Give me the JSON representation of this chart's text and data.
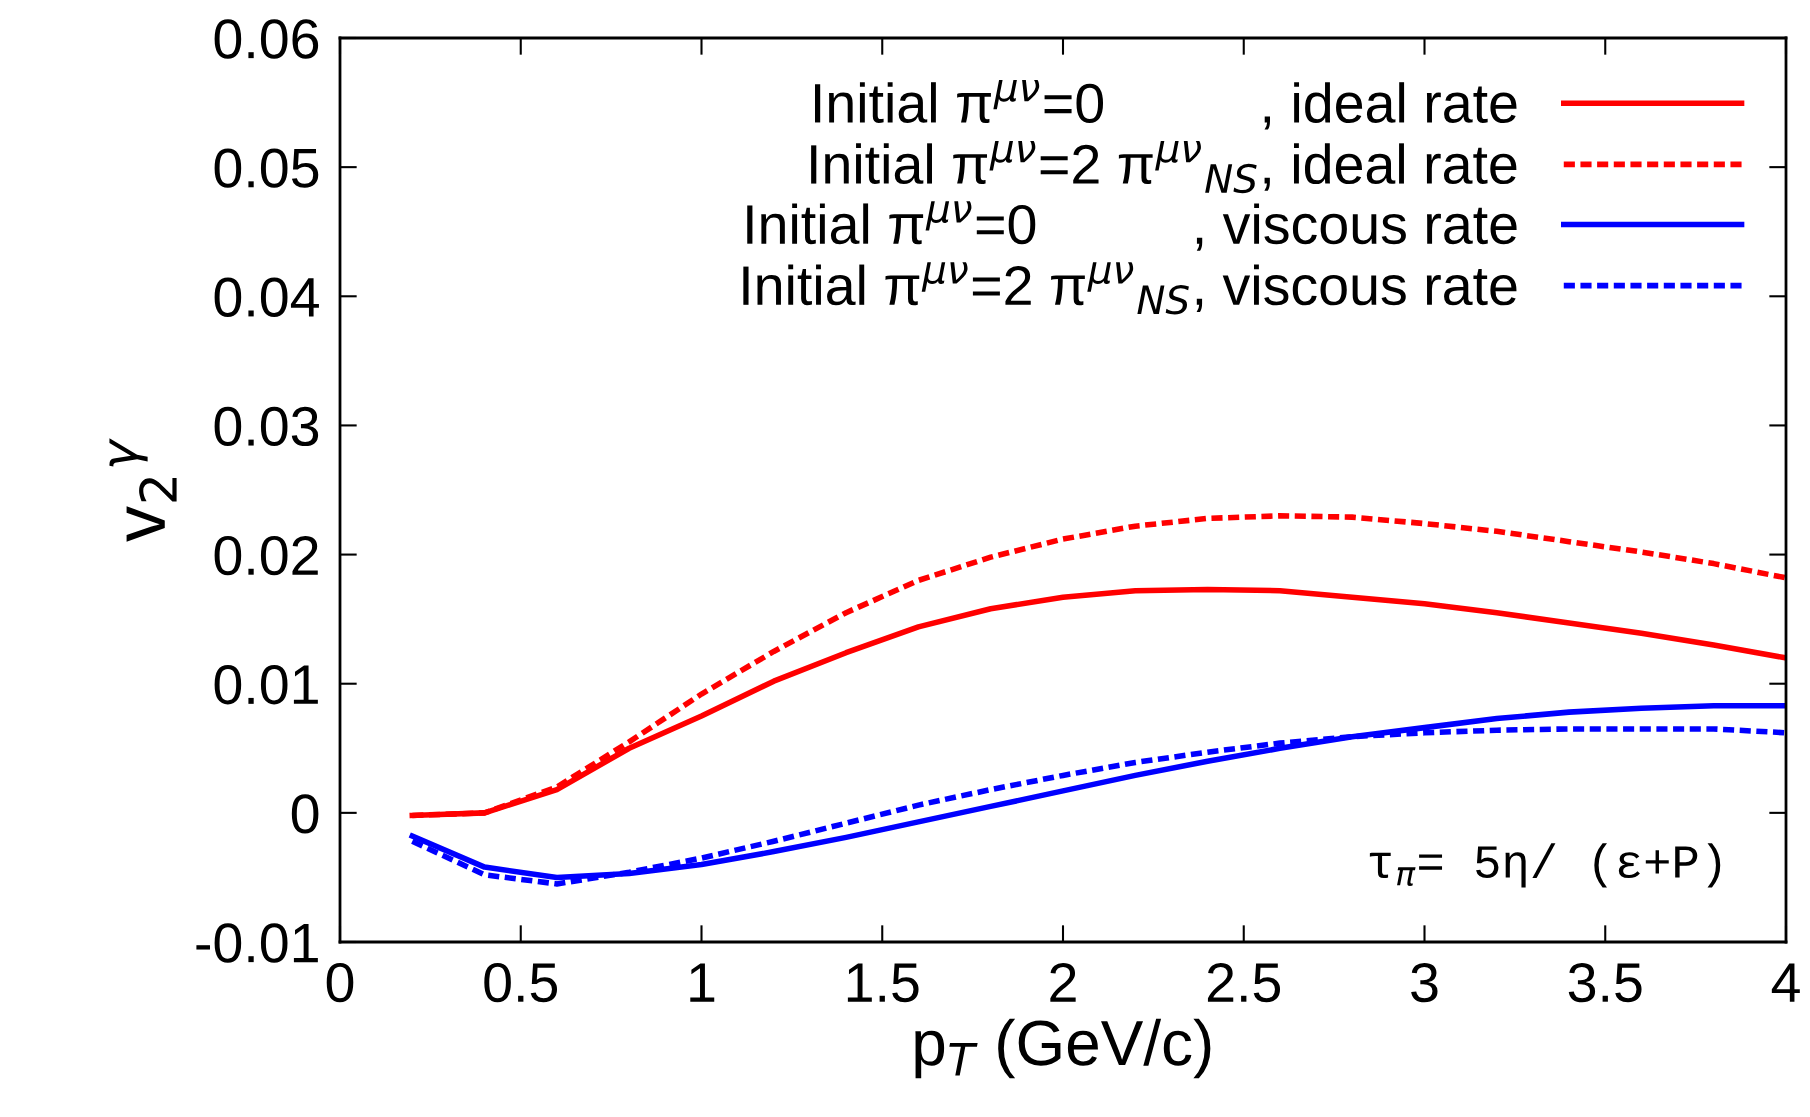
{
  "chart_data": {
    "type": "line",
    "xlabel": "p$_{T}$ (GeV/c)",
    "ylabel": "v$_{2}$$^{γ}$",
    "x": [
      0.2,
      0.4,
      0.6,
      0.8,
      1.0,
      1.2,
      1.4,
      1.6,
      1.8,
      2.0,
      2.2,
      2.4,
      2.6,
      2.8,
      3.0,
      3.2,
      3.4,
      3.6,
      3.8,
      4.0
    ],
    "series": [
      {
        "name": "Initial π$^{μν}$=0          , ideal rate",
        "color": "#ff0000",
        "line_style": "solid",
        "values": [
          -0.0002,
          0.0,
          0.0018,
          0.005,
          0.0075,
          0.0102,
          0.0124,
          0.0144,
          0.0158,
          0.0167,
          0.0172,
          0.0173,
          0.0172,
          0.0167,
          0.0162,
          0.0155,
          0.0147,
          0.0139,
          0.013,
          0.012
        ]
      },
      {
        "name": "Initial π$^{μν}$=2 π$^{μν}$$_{NS}$, ideal rate",
        "color": "#ff0000",
        "line_style": "dashed",
        "values": [
          -0.0002,
          0.0,
          0.002,
          0.0055,
          0.0092,
          0.0125,
          0.0155,
          0.018,
          0.0198,
          0.0212,
          0.0222,
          0.0228,
          0.023,
          0.0229,
          0.0224,
          0.0218,
          0.021,
          0.0202,
          0.0193,
          0.0182
        ]
      },
      {
        "name": "Initial π$^{μν}$=0          , viscous rate",
        "color": "#0000ff",
        "line_style": "solid",
        "values": [
          -0.0018,
          -0.0042,
          -0.005,
          -0.0047,
          -0.004,
          -0.003,
          -0.0019,
          -0.0007,
          0.0005,
          0.0017,
          0.0029,
          0.004,
          0.005,
          0.0059,
          0.0066,
          0.0073,
          0.0078,
          0.0081,
          0.0083,
          0.0083
        ]
      },
      {
        "name": "Initial π$^{μν}$=2 π$^{μν}$$_{NS}$, viscous rate",
        "color": "#0000ff",
        "line_style": "dashed",
        "values": [
          -0.0022,
          -0.0048,
          -0.0055,
          -0.0046,
          -0.0035,
          -0.0022,
          -0.0008,
          0.0006,
          0.0018,
          0.0029,
          0.0039,
          0.0047,
          0.0054,
          0.0059,
          0.0062,
          0.0064,
          0.0065,
          0.0065,
          0.0065,
          0.0062
        ]
      }
    ],
    "annotations": [
      "τ$_{π}$= 5η/ (ε+P)"
    ],
    "xlim": [
      0,
      4
    ],
    "xticks": [
      0,
      0.5,
      1,
      1.5,
      2,
      2.5,
      3,
      3.5,
      4
    ],
    "ylim": [
      -0.01,
      0.06
    ],
    "yticks": [
      -0.01,
      0,
      0.01,
      0.02,
      0.03,
      0.04,
      0.05,
      0.06
    ],
    "grid": false,
    "legend": "top right",
    "marker": "none"
  }
}
